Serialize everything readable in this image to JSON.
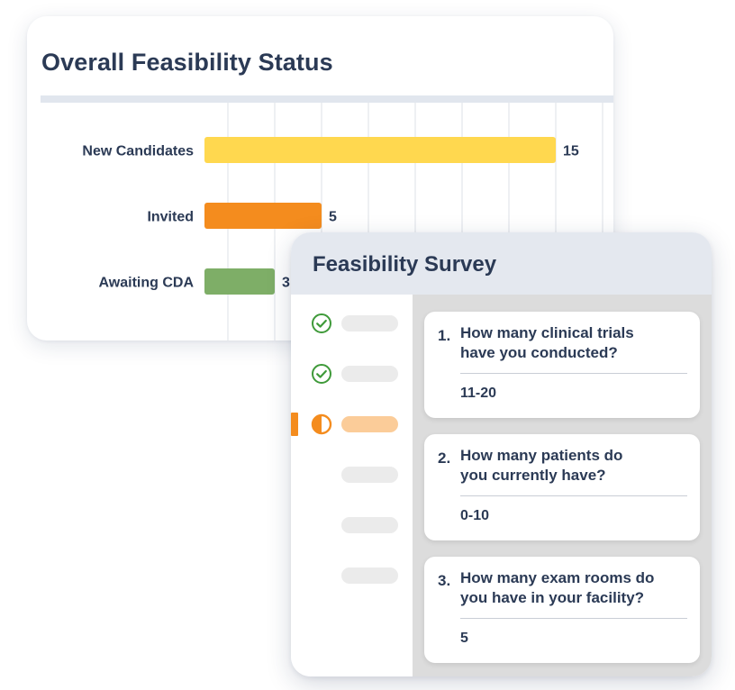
{
  "status_card": {
    "title": "Overall Feasibility Status"
  },
  "chart_data": {
    "type": "bar",
    "orientation": "horizontal",
    "categories": [
      "New Candidates",
      "Invited",
      "Awaiting CDA"
    ],
    "values": [
      15,
      5,
      3
    ],
    "data_labels": [
      "15",
      "5",
      "3"
    ],
    "colors": [
      "#ffd84f",
      "#f48c1e",
      "#7eae67"
    ],
    "xlim": [
      0,
      17
    ],
    "grid": true,
    "legend": "none",
    "title": "Overall Feasibility Status",
    "xlabel": "",
    "ylabel": ""
  },
  "survey": {
    "title": "Feasibility Survey",
    "steps": [
      {
        "status": "complete",
        "icon": "check-circle-icon"
      },
      {
        "status": "complete",
        "icon": "check-circle-icon"
      },
      {
        "status": "in-progress",
        "icon": "half-circle-icon"
      },
      {
        "status": "pending",
        "icon": ""
      },
      {
        "status": "pending",
        "icon": ""
      },
      {
        "status": "pending",
        "icon": ""
      }
    ],
    "questions": [
      {
        "number": "1.",
        "line1": "How many clinical trials",
        "line2": "have you conducted?",
        "answer": "11-20"
      },
      {
        "number": "2.",
        "line1": "How many patients do",
        "line2": "you currently have?",
        "answer": "0-10"
      },
      {
        "number": "3.",
        "line1": "How many exam rooms do",
        "line2": "you have in your facility?",
        "answer": "5"
      }
    ]
  },
  "colors": {
    "title_text": "#2b3a55",
    "complete": "#3f9a3a",
    "in_progress": "#f48c1e",
    "header_bg": "#e4e8ef"
  }
}
